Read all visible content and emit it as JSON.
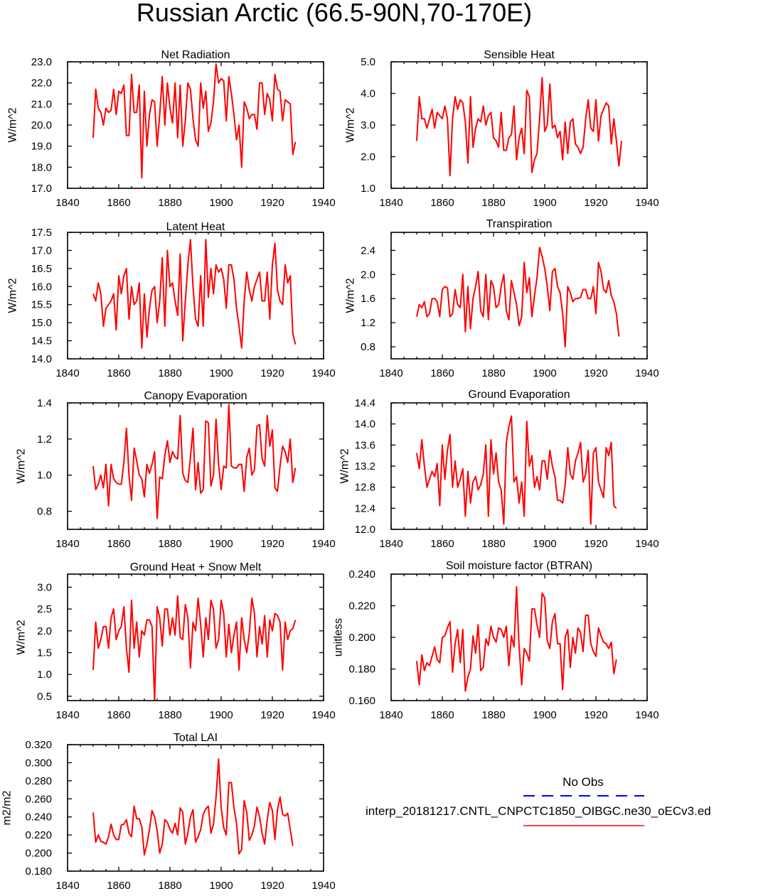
{
  "figure": {
    "title": "Russian Arctic (66.5-90N,70-170E)"
  },
  "legend": {
    "obs_label": "No Obs",
    "obs_color": "#0000ff",
    "model_label": "interp_20181217.CNTL_CNPCTC1850_OIBGC.ne30_oECv3.ed",
    "model_color": "#ff0000"
  },
  "chart_data": [
    {
      "type": "line",
      "title": "Net Radiation",
      "ylabel": "W/m^2",
      "xlabel": "",
      "xlim": [
        1840,
        1940
      ],
      "xticks": [
        1840,
        1860,
        1880,
        1900,
        1920,
        1940
      ],
      "ylim": [
        17.0,
        23.0
      ],
      "yticks": [
        "17.0",
        "18.0",
        "19.0",
        "20.0",
        "21.0",
        "22.0",
        "23.0"
      ],
      "x_start": 1850,
      "x_step": 1,
      "series": [
        {
          "name": "interp_20181217.CNTL_CNPCTC1850_OIBGC.ne30_oECv3.ed",
          "color": "#ff0000",
          "values": [
            19.4,
            21.7,
            20.8,
            20.6,
            20.0,
            20.8,
            20.6,
            20.7,
            21.7,
            20.5,
            21.6,
            21.5,
            21.9,
            19.5,
            19.5,
            22.4,
            20.6,
            20.6,
            21.9,
            17.5,
            21.6,
            19.0,
            20.5,
            21.2,
            21.1,
            19.0,
            20.5,
            22.3,
            20.0,
            22.0,
            20.8,
            20.1,
            22.0,
            19.4,
            21.9,
            19.0,
            20.2,
            22.0,
            21.7,
            20.3,
            19.3,
            19.0,
            22.0,
            20.8,
            21.6,
            19.7,
            20.1,
            21.1,
            22.9,
            22.0,
            22.2,
            22.1,
            20.2,
            22.3,
            21.5,
            20.5,
            19.3,
            20.0,
            18.0,
            21.1,
            20.8,
            20.3,
            20.5,
            20.5,
            19.8,
            22.0,
            22.0,
            20.5,
            21.5,
            21.2,
            20.2,
            22.4,
            21.7,
            21.6,
            20.2,
            21.2,
            21.1,
            21.0,
            18.6,
            19.2
          ]
        }
      ]
    },
    {
      "type": "line",
      "title": "Sensible Heat",
      "ylabel": "W/m^2",
      "xlabel": "",
      "xlim": [
        1840,
        1940
      ],
      "xticks": [
        1840,
        1860,
        1880,
        1900,
        1920,
        1940
      ],
      "ylim": [
        1.0,
        5.0
      ],
      "yticks": [
        "1.0",
        "2.0",
        "3.0",
        "4.0",
        "5.0"
      ],
      "x_start": 1850,
      "x_step": 1,
      "series": [
        {
          "name": "interp_20181217.CNTL_CNPCTC1850_OIBGC.ne30_oECv3.ed",
          "color": "#ff0000",
          "values": [
            2.5,
            3.9,
            3.2,
            3.2,
            2.9,
            3.2,
            3.5,
            2.9,
            3.4,
            3.3,
            3.2,
            3.6,
            3.2,
            1.4,
            3.2,
            3.9,
            3.5,
            3.8,
            3.7,
            3.1,
            1.8,
            3.9,
            2.3,
            2.9,
            3.2,
            3.1,
            3.6,
            3.0,
            3.3,
            3.4,
            2.6,
            2.5,
            2.3,
            3.4,
            2.2,
            2.2,
            2.6,
            2.7,
            3.6,
            1.9,
            2.6,
            2.9,
            2.1,
            4.1,
            3.9,
            1.5,
            1.9,
            2.1,
            3.2,
            4.5,
            2.8,
            3.0,
            4.3,
            2.9,
            3.0,
            2.6,
            2.8,
            1.9,
            3.1,
            2.1,
            3.1,
            3.2,
            2.4,
            2.3,
            2.1,
            2.3,
            3.2,
            3.8,
            2.9,
            2.8,
            3.8,
            2.5,
            3.3,
            3.5,
            3.7,
            3.6,
            2.4,
            3.2,
            2.5,
            1.7,
            2.5
          ]
        }
      ]
    },
    {
      "type": "line",
      "title": "Latent Heat",
      "ylabel": "W/m^2",
      "xlabel": "",
      "xlim": [
        1840,
        1940
      ],
      "xticks": [
        1840,
        1860,
        1880,
        1900,
        1920,
        1940
      ],
      "ylim": [
        14.0,
        17.5
      ],
      "yticks": [
        "14.0",
        "14.5",
        "15.0",
        "15.5",
        "16.0",
        "16.5",
        "17.0",
        "17.5"
      ],
      "x_start": 1850,
      "x_step": 1,
      "series": [
        {
          "name": "interp_20181217.CNTL_CNPCTC1850_OIBGC.ne30_oECv3.ed",
          "color": "#ff0000",
          "values": [
            15.8,
            15.6,
            16.1,
            15.8,
            14.9,
            15.4,
            15.5,
            15.6,
            15.8,
            14.8,
            16.3,
            15.8,
            16.3,
            16.5,
            15.1,
            16.0,
            15.5,
            15.6,
            16.1,
            14.3,
            15.8,
            14.6,
            15.4,
            15.9,
            16.0,
            15.0,
            15.6,
            16.8,
            14.9,
            17.0,
            16.0,
            16.1,
            15.6,
            15.2,
            16.9,
            14.5,
            15.6,
            16.6,
            17.3,
            16.0,
            15.1,
            14.9,
            16.3,
            14.9,
            17.3,
            15.7,
            16.5,
            15.8,
            16.6,
            16.4,
            16.5,
            16.2,
            15.4,
            16.6,
            16.6,
            16.2,
            15.4,
            14.9,
            14.3,
            15.6,
            16.4,
            15.9,
            15.6,
            16.0,
            16.2,
            16.4,
            15.6,
            15.6,
            16.4,
            15.1,
            16.6,
            17.2,
            15.9,
            15.6,
            15.5,
            16.6,
            16.1,
            16.3,
            14.7,
            14.4
          ]
        }
      ]
    },
    {
      "type": "line",
      "title": "Transpiration",
      "ylabel": "W/m^2",
      "xlabel": "",
      "xlim": [
        1840,
        1940
      ],
      "xticks": [
        1840,
        1860,
        1880,
        1900,
        1920,
        1940
      ],
      "ylim": [
        0.6,
        2.7
      ],
      "yticks": [
        "0.8",
        "1.2",
        "1.6",
        "2.0",
        "2.4"
      ],
      "x_start": 1850,
      "x_step": 1,
      "series": [
        {
          "name": "interp_20181217.CNTL_CNPCTC1850_OIBGC.ne30_oECv3.ed",
          "color": "#ff0000",
          "values": [
            1.3,
            1.5,
            1.45,
            1.55,
            1.3,
            1.35,
            1.6,
            1.6,
            1.55,
            1.3,
            1.75,
            1.8,
            1.78,
            1.3,
            1.35,
            1.75,
            1.5,
            1.45,
            2.0,
            1.05,
            1.8,
            1.1,
            1.6,
            1.8,
            2.05,
            1.4,
            1.3,
            2.0,
            1.25,
            1.9,
            1.8,
            1.45,
            1.5,
            1.8,
            2.0,
            1.4,
            1.25,
            1.9,
            1.7,
            1.5,
            1.15,
            1.3,
            2.2,
            1.7,
            1.95,
            1.3,
            1.65,
            1.95,
            2.45,
            2.3,
            2.1,
            1.8,
            1.4,
            2.05,
            2.1,
            1.8,
            1.7,
            1.35,
            0.8,
            1.8,
            1.7,
            1.55,
            1.6,
            1.6,
            1.62,
            1.75,
            1.75,
            1.6,
            1.6,
            1.8,
            1.35,
            2.2,
            2.05,
            1.75,
            1.7,
            1.9,
            1.65,
            1.55,
            1.35,
            0.97
          ]
        }
      ]
    },
    {
      "type": "line",
      "title": "Canopy Evaporation",
      "ylabel": "W/m^2",
      "xlabel": "",
      "xlim": [
        1840,
        1940
      ],
      "xticks": [
        1840,
        1860,
        1880,
        1900,
        1920,
        1940
      ],
      "ylim": [
        0.7,
        1.4
      ],
      "yticks": [
        "0.8",
        "1.0",
        "1.2",
        "1.4"
      ],
      "x_start": 1850,
      "x_step": 1,
      "series": [
        {
          "name": "interp_20181217.CNTL_CNPCTC1850_OIBGC.ne30_oECv3.ed",
          "color": "#ff0000",
          "values": [
            1.05,
            0.92,
            0.95,
            1.0,
            0.93,
            1.06,
            0.83,
            1.06,
            0.98,
            0.96,
            0.95,
            0.95,
            1.07,
            1.26,
            1.0,
            0.86,
            1.15,
            1.08,
            1.0,
            0.98,
            0.88,
            1.06,
            1.01,
            1.06,
            1.13,
            0.76,
            0.99,
            0.98,
            1.11,
            1.19,
            1.07,
            1.13,
            1.1,
            1.09,
            1.33,
            1.01,
            0.97,
            0.96,
            1.1,
            1.26,
            0.92,
            1.07,
            0.9,
            0.92,
            1.3,
            1.29,
            0.94,
            1.0,
            1.31,
            1.06,
            0.92,
            1.05,
            1.04,
            1.39,
            1.05,
            1.04,
            1.04,
            1.06,
            1.06,
            0.91,
            1.1,
            1.15,
            1.0,
            1.03,
            1.27,
            1.28,
            1.09,
            1.05,
            1.33,
            1.16,
            1.25,
            0.93,
            0.91,
            1.05,
            1.16,
            1.13,
            1.07,
            1.2,
            0.96,
            1.04
          ]
        }
      ]
    },
    {
      "type": "line",
      "title": "Ground Evaporation",
      "ylabel": "W/m^2",
      "xlabel": "",
      "xlim": [
        1840,
        1940
      ],
      "xticks": [
        1840,
        1860,
        1880,
        1900,
        1920,
        1940
      ],
      "ylim": [
        12.0,
        14.4
      ],
      "yticks": [
        "12.0",
        "12.4",
        "12.8",
        "13.2",
        "13.6",
        "14.0",
        "14.4"
      ],
      "x_start": 1850,
      "x_step": 1,
      "series": [
        {
          "name": "interp_20181217.CNTL_CNPCTC1850_OIBGC.ne30_oECv3.ed",
          "color": "#ff0000",
          "values": [
            13.45,
            13.15,
            13.7,
            13.2,
            12.8,
            12.95,
            13.1,
            13.0,
            13.25,
            12.45,
            13.6,
            12.95,
            13.5,
            13.8,
            12.8,
            13.3,
            12.8,
            12.95,
            13.15,
            12.25,
            13.1,
            12.5,
            12.9,
            13.0,
            12.75,
            12.85,
            13.05,
            13.6,
            12.25,
            13.7,
            13.05,
            13.45,
            12.9,
            12.75,
            12.1,
            13.65,
            13.95,
            14.15,
            12.9,
            13.0,
            12.5,
            12.9,
            12.25,
            14.05,
            13.2,
            13.4,
            12.8,
            13.0,
            12.75,
            13.3,
            13.3,
            12.95,
            13.5,
            13.2,
            13.0,
            12.55,
            12.55,
            12.5,
            12.85,
            13.55,
            13.05,
            12.95,
            13.3,
            13.45,
            13.65,
            12.9,
            13.05,
            13.5,
            12.1,
            13.45,
            13.55,
            12.9,
            12.75,
            12.6,
            13.55,
            13.4,
            13.65,
            12.45,
            12.4
          ]
        }
      ]
    },
    {
      "type": "line",
      "title": "Ground Heat + Snow Melt",
      "ylabel": "W/m^2",
      "xlabel": "",
      "xlim": [
        1840,
        1940
      ],
      "xticks": [
        1840,
        1860,
        1880,
        1900,
        1920,
        1940
      ],
      "ylim": [
        0.4,
        3.3
      ],
      "yticks": [
        "0.5",
        "1.0",
        "1.5",
        "2.0",
        "2.5",
        "3.0"
      ],
      "x_start": 1850,
      "x_step": 1,
      "series": [
        {
          "name": "interp_20181217.CNTL_CNPCTC1850_OIBGC.ne30_oECv3.ed",
          "color": "#ff0000",
          "values": [
            1.1,
            2.2,
            1.6,
            1.8,
            2.1,
            2.1,
            1.6,
            2.3,
            2.5,
            1.8,
            2.0,
            2.1,
            2.55,
            1.6,
            1.05,
            2.7,
            1.6,
            2.2,
            1.4,
            2.0,
            1.9,
            2.25,
            2.25,
            2.1,
            0.4,
            2.55,
            2.3,
            1.65,
            2.5,
            2.5,
            1.9,
            2.3,
            1.9,
            2.8,
            1.85,
            1.8,
            2.6,
            2.3,
            1.15,
            2.2,
            2.0,
            2.75,
            2.15,
            1.4,
            2.3,
            1.8,
            2.7,
            2.5,
            1.6,
            1.8,
            2.7,
            2.4,
            1.4,
            2.15,
            1.5,
            1.9,
            2.2,
            1.1,
            2.3,
            1.8,
            1.5,
            1.95,
            2.75,
            2.4,
            1.4,
            2.1,
            1.7,
            2.35,
            1.4,
            2.25,
            2.0,
            2.4,
            2.35,
            2.2,
            1.1,
            2.2,
            1.8,
            2.0,
            2.05,
            2.25
          ]
        }
      ]
    },
    {
      "type": "line",
      "title": "Soil moisture factor (BTRAN)",
      "ylabel": "unitless",
      "xlabel": "",
      "xlim": [
        1840,
        1940
      ],
      "xticks": [
        1840,
        1860,
        1880,
        1900,
        1920,
        1940
      ],
      "ylim": [
        0.16,
        0.24
      ],
      "yticks": [
        "0.160",
        "0.180",
        "0.200",
        "0.220",
        "0.240"
      ],
      "x_start": 1850,
      "x_step": 1,
      "series": [
        {
          "name": "interp_20181217.CNTL_CNPCTC1850_OIBGC.ne30_oECv3.ed",
          "color": "#ff0000",
          "values": [
            0.185,
            0.17,
            0.189,
            0.179,
            0.184,
            0.182,
            0.188,
            0.194,
            0.186,
            0.184,
            0.2,
            0.201,
            0.206,
            0.21,
            0.178,
            0.196,
            0.205,
            0.184,
            0.205,
            0.166,
            0.175,
            0.18,
            0.201,
            0.19,
            0.208,
            0.179,
            0.181,
            0.199,
            0.195,
            0.207,
            0.2,
            0.197,
            0.206,
            0.205,
            0.2,
            0.207,
            0.182,
            0.201,
            0.194,
            0.232,
            0.194,
            0.17,
            0.193,
            0.19,
            0.185,
            0.218,
            0.218,
            0.208,
            0.2,
            0.228,
            0.225,
            0.198,
            0.193,
            0.21,
            0.215,
            0.196,
            0.196,
            0.167,
            0.2,
            0.205,
            0.181,
            0.2,
            0.19,
            0.206,
            0.203,
            0.191,
            0.214,
            0.214,
            0.196,
            0.191,
            0.188,
            0.206,
            0.201,
            0.197,
            0.196,
            0.193,
            0.197,
            0.177,
            0.186
          ]
        }
      ]
    },
    {
      "type": "line",
      "title": "Total LAI",
      "ylabel": "m2/m2",
      "xlabel": "",
      "xlim": [
        1840,
        1940
      ],
      "xticks": [
        1840,
        1860,
        1880,
        1900,
        1920,
        1940
      ],
      "ylim": [
        0.18,
        0.32
      ],
      "yticks": [
        "0.180",
        "0.200",
        "0.220",
        "0.240",
        "0.260",
        "0.280",
        "0.300",
        "0.320"
      ],
      "x_start": 1850,
      "x_step": 1,
      "series": [
        {
          "name": "interp_20181217.CNTL_CNPCTC1850_OIBGC.ne30_oECv3.ed",
          "color": "#ff0000",
          "values": [
            0.245,
            0.212,
            0.22,
            0.213,
            0.212,
            0.21,
            0.218,
            0.232,
            0.22,
            0.215,
            0.215,
            0.231,
            0.232,
            0.237,
            0.222,
            0.218,
            0.252,
            0.238,
            0.238,
            0.229,
            0.198,
            0.21,
            0.226,
            0.247,
            0.24,
            0.225,
            0.2,
            0.21,
            0.237,
            0.234,
            0.226,
            0.222,
            0.233,
            0.22,
            0.25,
            0.245,
            0.21,
            0.222,
            0.24,
            0.248,
            0.212,
            0.218,
            0.226,
            0.243,
            0.249,
            0.252,
            0.222,
            0.232,
            0.262,
            0.304,
            0.25,
            0.228,
            0.22,
            0.278,
            0.278,
            0.25,
            0.233,
            0.199,
            0.204,
            0.258,
            0.245,
            0.214,
            0.22,
            0.23,
            0.251,
            0.24,
            0.222,
            0.21,
            0.237,
            0.256,
            0.247,
            0.215,
            0.248,
            0.262,
            0.243,
            0.241,
            0.244,
            0.226,
            0.208
          ]
        }
      ]
    }
  ]
}
